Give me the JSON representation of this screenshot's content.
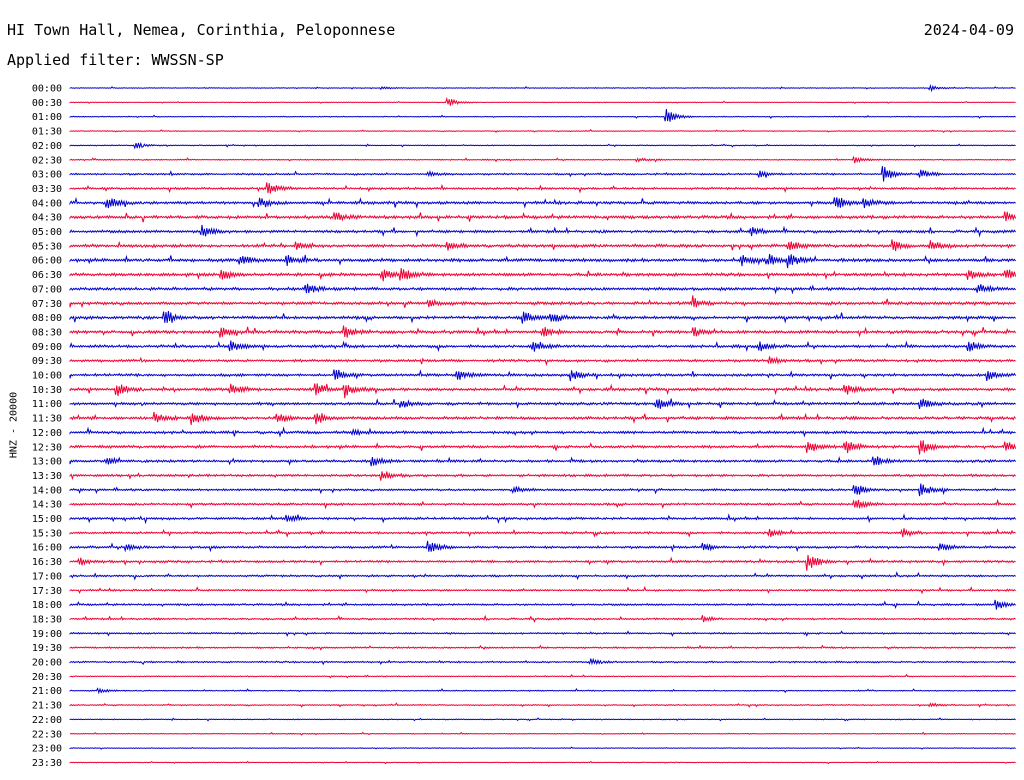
{
  "header": {
    "title": "HI Town Hall, Nemea, Corinthia, Peloponnese",
    "date": "2024-04-09",
    "filter": "Applied filter: WWSSN-SP"
  },
  "chart_data": {
    "type": "line",
    "title": "HI Town Hall, Nemea, Corinthia, Peloponnese",
    "ylabel": "HNZ - 20000",
    "xlabel": "",
    "colors": [
      "#0000cc",
      "#ee0033"
    ],
    "rows": [
      "00:00",
      "00:30",
      "01:00",
      "01:30",
      "02:00",
      "02:30",
      "03:00",
      "03:30",
      "04:00",
      "04:30",
      "05:00",
      "05:30",
      "06:00",
      "06:30",
      "07:00",
      "07:30",
      "08:00",
      "08:30",
      "09:00",
      "09:30",
      "10:00",
      "10:30",
      "11:00",
      "11:30",
      "12:00",
      "12:30",
      "13:00",
      "13:30",
      "14:00",
      "14:30",
      "15:00",
      "15:30",
      "16:00",
      "16:30",
      "17:00",
      "17:30",
      "18:00",
      "18:30",
      "19:00",
      "19:30",
      "20:00",
      "20:30",
      "21:00",
      "21:30",
      "22:00",
      "22:30",
      "23:00",
      "23:30"
    ],
    "noise_levels": [
      0.4,
      0.4,
      0.5,
      0.4,
      0.5,
      0.6,
      1.0,
      1.2,
      1.6,
      1.7,
      1.5,
      1.7,
      1.8,
      1.7,
      1.6,
      1.7,
      1.6,
      1.7,
      1.5,
      1.4,
      1.5,
      1.6,
      1.5,
      1.6,
      1.5,
      1.5,
      1.4,
      1.3,
      1.2,
      1.2,
      1.3,
      1.2,
      1.3,
      1.3,
      1.1,
      1.0,
      1.1,
      1.0,
      0.9,
      0.9,
      0.9,
      0.6,
      0.6,
      0.6,
      0.5,
      0.5,
      0.4,
      0.4
    ],
    "events": [
      {
        "row": 0,
        "t": 0.33,
        "a": 1.5
      },
      {
        "row": 0,
        "t": 0.91,
        "a": 2.5
      },
      {
        "row": 1,
        "t": 0.4,
        "a": 4
      },
      {
        "row": 2,
        "t": 0.63,
        "a": 8
      },
      {
        "row": 4,
        "t": 0.07,
        "a": 3
      },
      {
        "row": 5,
        "t": 0.6,
        "a": 2
      },
      {
        "row": 5,
        "t": 0.83,
        "a": 3
      },
      {
        "row": 6,
        "t": 0.38,
        "a": 2
      },
      {
        "row": 6,
        "t": 0.73,
        "a": 3
      },
      {
        "row": 6,
        "t": 0.86,
        "a": 8
      },
      {
        "row": 6,
        "t": 0.9,
        "a": 4
      },
      {
        "row": 7,
        "t": 0.21,
        "a": 6
      },
      {
        "row": 8,
        "t": 0.04,
        "a": 6
      },
      {
        "row": 8,
        "t": 0.2,
        "a": 5
      },
      {
        "row": 8,
        "t": 0.81,
        "a": 7
      },
      {
        "row": 8,
        "t": 0.84,
        "a": 5
      },
      {
        "row": 9,
        "t": 0.28,
        "a": 5
      },
      {
        "row": 9,
        "t": 0.99,
        "a": 5
      },
      {
        "row": 10,
        "t": 0.14,
        "a": 6
      },
      {
        "row": 10,
        "t": 0.72,
        "a": 4
      },
      {
        "row": 11,
        "t": 0.24,
        "a": 4
      },
      {
        "row": 11,
        "t": 0.4,
        "a": 4
      },
      {
        "row": 11,
        "t": 0.76,
        "a": 5
      },
      {
        "row": 11,
        "t": 0.87,
        "a": 5
      },
      {
        "row": 11,
        "t": 0.91,
        "a": 5
      },
      {
        "row": 12,
        "t": 0.18,
        "a": 6
      },
      {
        "row": 12,
        "t": 0.23,
        "a": 5
      },
      {
        "row": 12,
        "t": 0.71,
        "a": 5
      },
      {
        "row": 12,
        "t": 0.74,
        "a": 5
      },
      {
        "row": 12,
        "t": 0.76,
        "a": 7
      },
      {
        "row": 13,
        "t": 0.16,
        "a": 5
      },
      {
        "row": 13,
        "t": 0.33,
        "a": 6
      },
      {
        "row": 13,
        "t": 0.35,
        "a": 7
      },
      {
        "row": 13,
        "t": 0.95,
        "a": 5
      },
      {
        "row": 13,
        "t": 0.99,
        "a": 6
      },
      {
        "row": 14,
        "t": 0.25,
        "a": 5
      },
      {
        "row": 14,
        "t": 0.96,
        "a": 5
      },
      {
        "row": 15,
        "t": 0.38,
        "a": 4
      },
      {
        "row": 15,
        "t": 0.66,
        "a": 4
      },
      {
        "row": 16,
        "t": 0.1,
        "a": 8
      },
      {
        "row": 16,
        "t": 0.48,
        "a": 6
      },
      {
        "row": 16,
        "t": 0.51,
        "a": 5
      },
      {
        "row": 17,
        "t": 0.16,
        "a": 5
      },
      {
        "row": 17,
        "t": 0.29,
        "a": 6
      },
      {
        "row": 17,
        "t": 0.5,
        "a": 5
      },
      {
        "row": 17,
        "t": 0.66,
        "a": 4
      },
      {
        "row": 18,
        "t": 0.17,
        "a": 6
      },
      {
        "row": 18,
        "t": 0.49,
        "a": 6
      },
      {
        "row": 18,
        "t": 0.73,
        "a": 4
      },
      {
        "row": 18,
        "t": 0.95,
        "a": 6
      },
      {
        "row": 19,
        "t": 0.74,
        "a": 4
      },
      {
        "row": 20,
        "t": 0.28,
        "a": 5
      },
      {
        "row": 20,
        "t": 0.41,
        "a": 5
      },
      {
        "row": 20,
        "t": 0.53,
        "a": 6
      },
      {
        "row": 20,
        "t": 0.97,
        "a": 5
      },
      {
        "row": 21,
        "t": 0.05,
        "a": 6
      },
      {
        "row": 21,
        "t": 0.17,
        "a": 5
      },
      {
        "row": 21,
        "t": 0.26,
        "a": 6
      },
      {
        "row": 21,
        "t": 0.29,
        "a": 8
      },
      {
        "row": 21,
        "t": 0.82,
        "a": 5
      },
      {
        "row": 22,
        "t": 0.35,
        "a": 4
      },
      {
        "row": 22,
        "t": 0.62,
        "a": 6
      },
      {
        "row": 22,
        "t": 0.9,
        "a": 5
      },
      {
        "row": 23,
        "t": 0.09,
        "a": 5
      },
      {
        "row": 23,
        "t": 0.13,
        "a": 6
      },
      {
        "row": 23,
        "t": 0.22,
        "a": 5
      },
      {
        "row": 23,
        "t": 0.26,
        "a": 7
      },
      {
        "row": 24,
        "t": 0.3,
        "a": 3
      },
      {
        "row": 25,
        "t": 0.78,
        "a": 7
      },
      {
        "row": 25,
        "t": 0.82,
        "a": 7
      },
      {
        "row": 25,
        "t": 0.9,
        "a": 8
      },
      {
        "row": 25,
        "t": 0.99,
        "a": 4
      },
      {
        "row": 26,
        "t": 0.04,
        "a": 3
      },
      {
        "row": 26,
        "t": 0.32,
        "a": 5
      },
      {
        "row": 26,
        "t": 0.85,
        "a": 5
      },
      {
        "row": 27,
        "t": 0.33,
        "a": 5
      },
      {
        "row": 28,
        "t": 0.47,
        "a": 3
      },
      {
        "row": 28,
        "t": 0.83,
        "a": 8
      },
      {
        "row": 28,
        "t": 0.9,
        "a": 6
      },
      {
        "row": 29,
        "t": 0.83,
        "a": 5
      },
      {
        "row": 30,
        "t": 0.23,
        "a": 3
      },
      {
        "row": 31,
        "t": 0.74,
        "a": 4
      },
      {
        "row": 31,
        "t": 0.88,
        "a": 5
      },
      {
        "row": 32,
        "t": 0.06,
        "a": 3
      },
      {
        "row": 32,
        "t": 0.38,
        "a": 6
      },
      {
        "row": 32,
        "t": 0.67,
        "a": 4
      },
      {
        "row": 32,
        "t": 0.92,
        "a": 4
      },
      {
        "row": 33,
        "t": 0.01,
        "a": 4
      },
      {
        "row": 33,
        "t": 0.78,
        "a": 9
      },
      {
        "row": 36,
        "t": 0.98,
        "a": 5
      },
      {
        "row": 37,
        "t": 0.67,
        "a": 3
      },
      {
        "row": 40,
        "t": 0.55,
        "a": 3
      },
      {
        "row": 42,
        "t": 0.03,
        "a": 2
      },
      {
        "row": 43,
        "t": 0.91,
        "a": 2
      }
    ]
  }
}
